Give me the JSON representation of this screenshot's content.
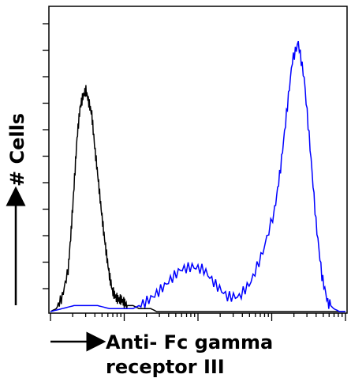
{
  "chart_data": {
    "type": "line",
    "title": "",
    "xlabel_line1": "Anti- Fc gamma",
    "xlabel_line2": "receptor III",
    "ylabel": "# Cells",
    "x_scale": "log",
    "xlim": [
      0,
      1
    ],
    "ylim": [
      0,
      1
    ],
    "grid": false,
    "legend": "none",
    "series": [
      {
        "color": "#000000",
        "x": [
          0.0,
          0.02,
          0.04,
          0.06,
          0.07,
          0.08,
          0.09,
          0.1,
          0.11,
          0.12,
          0.13,
          0.14,
          0.15,
          0.16,
          0.17,
          0.18,
          0.19,
          0.2,
          0.21,
          0.22,
          0.23,
          0.24,
          0.25,
          0.26,
          0.27,
          0.28,
          0.3,
          0.32,
          0.34,
          0.36,
          0.4,
          0.45,
          0.5,
          0.6,
          0.7,
          0.8,
          0.9,
          1.0
        ],
        "y": [
          0.0,
          0.01,
          0.05,
          0.14,
          0.27,
          0.42,
          0.58,
          0.68,
          0.72,
          0.74,
          0.7,
          0.66,
          0.55,
          0.46,
          0.36,
          0.27,
          0.19,
          0.12,
          0.07,
          0.05,
          0.04,
          0.04,
          0.03,
          0.02,
          0.02,
          0.02,
          0.01,
          0.01,
          0.01,
          0.0,
          0.0,
          0.0,
          0.0,
          0.0,
          0.0,
          0.0,
          0.0,
          0.0
        ]
      },
      {
        "color": "#0000ff",
        "x": [
          0.0,
          0.04,
          0.08,
          0.12,
          0.16,
          0.2,
          0.24,
          0.28,
          0.32,
          0.36,
          0.4,
          0.44,
          0.48,
          0.52,
          0.56,
          0.6,
          0.64,
          0.68,
          0.72,
          0.76,
          0.78,
          0.8,
          0.82,
          0.84,
          0.86,
          0.88,
          0.9,
          0.92,
          0.94,
          0.96,
          0.98,
          1.0
        ],
        "y": [
          0.0,
          0.01,
          0.02,
          0.02,
          0.02,
          0.01,
          0.01,
          0.01,
          0.03,
          0.06,
          0.1,
          0.14,
          0.15,
          0.14,
          0.09,
          0.05,
          0.05,
          0.1,
          0.2,
          0.34,
          0.48,
          0.66,
          0.84,
          0.9,
          0.78,
          0.55,
          0.3,
          0.12,
          0.03,
          0.01,
          0.0,
          0.0
        ]
      }
    ]
  }
}
